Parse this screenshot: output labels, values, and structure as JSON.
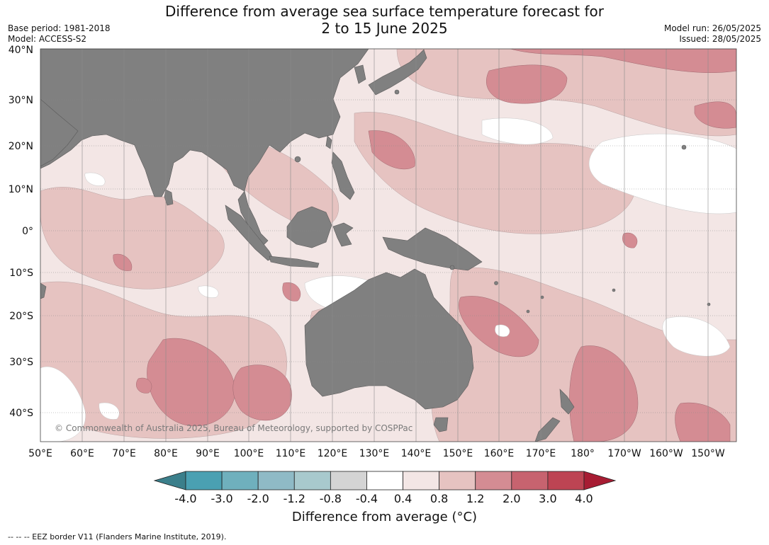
{
  "header": {
    "title_line1": "Difference from average sea surface temperature forecast for",
    "title_line2": "2 to 15 June 2025",
    "base_period": "Base period: 1981-2018",
    "model": "Model: ACCESS-S2",
    "model_run": "Model run: 26/05/2025",
    "issued": "Issued: 28/05/2025"
  },
  "map": {
    "lat_labels": [
      "40°N",
      "30°N",
      "20°N",
      "10°N",
      "0°",
      "10°S",
      "20°S",
      "30°S",
      "40°S"
    ],
    "lon_labels": [
      "50°E",
      "60°E",
      "70°E",
      "80°E",
      "90°E",
      "100°E",
      "110°E",
      "120°E",
      "130°E",
      "140°E",
      "150°E",
      "160°E",
      "170°E",
      "180°",
      "170°W",
      "160°W",
      "150°W"
    ],
    "copyright": "© Commonwealth of Australia 2025, Bureau of Meteorology, supported by COSPPac",
    "colors": {
      "land": "#808080",
      "ocean_neutral": "#ffffff"
    }
  },
  "colorbar": {
    "tick_labels": [
      "-4.0",
      "-3.0",
      "-2.0",
      "-1.2",
      "-0.8",
      "-0.4",
      "0.4",
      "0.8",
      "1.2",
      "2.0",
      "3.0",
      "4.0"
    ],
    "colors": [
      "#3b7f8b",
      "#4aa0b2",
      "#6fb0bd",
      "#8fbac6",
      "#a8c9cd",
      "#d4d4d4",
      "#ffffff",
      "#f3e6e5",
      "#e6c3c1",
      "#d48c93",
      "#c7636f",
      "#bd4453",
      "#a71c33"
    ],
    "title": "Difference from average (°C)"
  },
  "footer": {
    "eez_note": "--  --  -- EEZ border V11 (Flanders Marine Institute, 2019)."
  }
}
